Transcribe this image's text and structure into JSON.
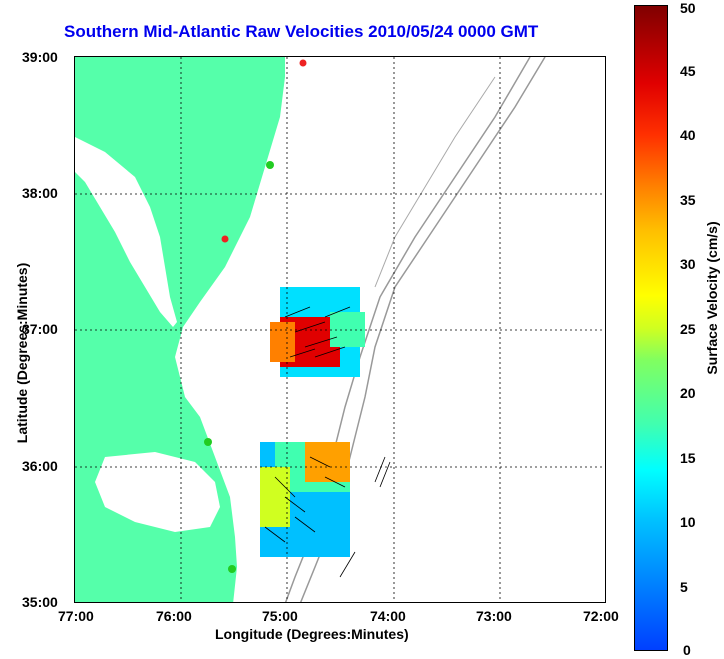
{
  "title": "Southern Mid-Atlantic Raw Velocities 2010/05/24 0000 GMT",
  "axes": {
    "x_title": "Longitude (Degrees:Minutes)",
    "y_title": "Latitude (Degrees:Minutes)",
    "x_ticks": [
      "77:00",
      "76:00",
      "75:00",
      "74:00",
      "73:00",
      "72:00"
    ],
    "y_ticks": [
      "39:00",
      "38:00",
      "37:00",
      "36:00",
      "35:00"
    ]
  },
  "colorbar": {
    "title": "Surface Velocity (cm/s)",
    "ticks": [
      "50",
      "45",
      "40",
      "35",
      "30",
      "25",
      "20",
      "15",
      "10",
      "5",
      "0"
    ]
  },
  "colors": {
    "land": "#55ffaa",
    "water": "#ffffff",
    "title": "#0000ee",
    "bathymetry": "#999999",
    "station_green": "#22cc22",
    "station_red": "#ee2222"
  }
}
